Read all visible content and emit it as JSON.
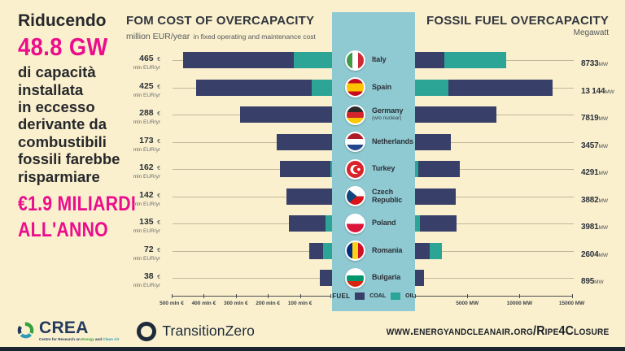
{
  "page": {
    "background": "#FAF0CE",
    "accent_pink": "#EB0D8C",
    "coal_color": "#383F69",
    "oil_color": "#2CA496",
    "column_color": "#8FC9D1",
    "footer_bar_color": "#1B2530"
  },
  "intro": {
    "lead": "Riducendo",
    "highlight_gw": "48.8 GW",
    "body": "di capacità\ninstallata\nin eccesso\nderivante da\ncombustibili\nfossili farebbe\nrisparmiare",
    "highlight_save": "€1.9 MILIARDI\nALL'ANNO"
  },
  "left_chart": {
    "title": "FOM COST OF OVERCAPACITY",
    "subtitle_unit": "million EUR/year",
    "subtitle_rest": "in fixed operating and maintenance cost",
    "currency_suffix": "€",
    "unit_label": "mln EUR/yr",
    "axis_ticks": [
      {
        "value": 500,
        "label": "500 mln €"
      },
      {
        "value": 400,
        "label": "400 mln €"
      },
      {
        "value": 300,
        "label": "300 mln €"
      },
      {
        "value": 200,
        "label": "200 mln €"
      },
      {
        "value": 100,
        "label": "100 mln €"
      }
    ]
  },
  "right_chart": {
    "title": "FOSSIL FUEL OVERCAPACITY",
    "subtitle": "Megawatt",
    "mw_suffix": "MW",
    "axis_ticks": [
      {
        "value": 5000,
        "label": "5000 MW"
      },
      {
        "value": 10000,
        "label": "10000 MW"
      },
      {
        "value": 15000,
        "label": "15000 MW"
      }
    ]
  },
  "legend": {
    "title": "FUEL",
    "items": [
      {
        "fuel": "coal",
        "label": "COAL"
      },
      {
        "fuel": "oil",
        "label": "OIL"
      }
    ]
  },
  "countries": [
    {
      "id": "italy",
      "name": "Italy",
      "sub": "",
      "fom_label": "465",
      "fom_segments": [
        {
          "fuel": "coal",
          "value": 346
        },
        {
          "fuel": "oil",
          "value": 119
        }
      ],
      "mw_label": "8733",
      "mw_segments": [
        {
          "fuel": "coal",
          "value": 2800
        },
        {
          "fuel": "oil",
          "value": 5933
        }
      ]
    },
    {
      "id": "spain",
      "name": "Spain",
      "sub": "",
      "fom_label": "425",
      "fom_segments": [
        {
          "fuel": "coal",
          "value": 362
        },
        {
          "fuel": "oil",
          "value": 63
        }
      ],
      "mw_label": "13 144",
      "mw_segments": [
        {
          "fuel": "oil",
          "value": 3200
        },
        {
          "fuel": "coal",
          "value": 9944
        }
      ]
    },
    {
      "id": "germany",
      "name": "Germany",
      "sub": "(w/o nuclear)",
      "fom_label": "288",
      "fom_segments": [
        {
          "fuel": "coal",
          "value": 288
        }
      ],
      "mw_label": "7819",
      "mw_segments": [
        {
          "fuel": "coal",
          "value": 7819
        }
      ]
    },
    {
      "id": "netherlands",
      "name": "Netherlands",
      "sub": "",
      "fom_label": "173",
      "fom_segments": [
        {
          "fuel": "coal",
          "value": 173
        }
      ],
      "mw_label": "3457",
      "mw_segments": [
        {
          "fuel": "coal",
          "value": 3457
        }
      ]
    },
    {
      "id": "turkey",
      "name": "Turkey",
      "sub": "",
      "fom_label": "162",
      "fom_segments": [
        {
          "fuel": "coal",
          "value": 157
        },
        {
          "fuel": "oil",
          "value": 5
        }
      ],
      "mw_label": "4291",
      "mw_segments": [
        {
          "fuel": "oil",
          "value": 300
        },
        {
          "fuel": "coal",
          "value": 3991
        }
      ]
    },
    {
      "id": "czech-republic",
      "name": "Czech Republic",
      "sub": "",
      "fom_label": "142",
      "fom_segments": [
        {
          "fuel": "coal",
          "value": 142
        }
      ],
      "mw_label": "3882",
      "mw_segments": [
        {
          "fuel": "coal",
          "value": 3882
        }
      ]
    },
    {
      "id": "poland",
      "name": "Poland",
      "sub": "",
      "fom_label": "135",
      "fom_segments": [
        {
          "fuel": "coal",
          "value": 115
        },
        {
          "fuel": "oil",
          "value": 20
        }
      ],
      "mw_label": "3981",
      "mw_segments": [
        {
          "fuel": "oil",
          "value": 500
        },
        {
          "fuel": "coal",
          "value": 3481
        }
      ]
    },
    {
      "id": "romania",
      "name": "Romania",
      "sub": "",
      "fom_label": "72",
      "fom_segments": [
        {
          "fuel": "coal",
          "value": 44
        },
        {
          "fuel": "oil",
          "value": 28
        }
      ],
      "mw_label": "2604",
      "mw_segments": [
        {
          "fuel": "coal",
          "value": 1430
        },
        {
          "fuel": "oil",
          "value": 1174
        }
      ]
    },
    {
      "id": "bulgaria",
      "name": "Bulgaria",
      "sub": "",
      "fom_label": "38",
      "fom_segments": [
        {
          "fuel": "coal",
          "value": 38
        }
      ],
      "mw_label": "895",
      "mw_segments": [
        {
          "fuel": "coal",
          "value": 895
        }
      ]
    }
  ],
  "footer": {
    "crea_name": "CREA",
    "crea_tagline_parts": [
      {
        "text": "Centre for Research on ",
        "color": "#24395E"
      },
      {
        "text": "Energy",
        "color": "#35A13C"
      },
      {
        "text": " and ",
        "color": "#24395E"
      },
      {
        "text": "Clean Air",
        "color": "#2E9BB5"
      }
    ],
    "partner_name": "TransitionZero",
    "url": "www.energyandcleanair.org/Ripe4Closure"
  },
  "chart_data": {
    "type": "bar",
    "orientation": "diverging-horizontal",
    "title_left": "FOM COST OF OVERCAPACITY (million EUR/year in fixed operating and maintenance cost)",
    "title_right": "FOSSIL FUEL OVERCAPACITY (Megawatt)",
    "categories": [
      "Italy",
      "Spain",
      "Germany (w/o nuclear)",
      "Netherlands",
      "Turkey",
      "Czech Republic",
      "Poland",
      "Romania",
      "Bulgaria"
    ],
    "legend": [
      "COAL",
      "OIL"
    ],
    "fom_cost_mln_eur_yr": {
      "axis_range": [
        0,
        500
      ],
      "totals": [
        465,
        425,
        288,
        173,
        162,
        142,
        135,
        72,
        38
      ],
      "series": [
        {
          "name": "COAL",
          "values": [
            346,
            362,
            288,
            173,
            157,
            142,
            115,
            44,
            38
          ]
        },
        {
          "name": "OIL",
          "values": [
            119,
            63,
            0,
            0,
            5,
            0,
            20,
            28,
            0
          ]
        }
      ]
    },
    "overcapacity_mw": {
      "axis_range": [
        0,
        15000
      ],
      "totals": [
        8733,
        13144,
        7819,
        3457,
        4291,
        3882,
        3981,
        2604,
        895
      ],
      "series": [
        {
          "name": "COAL",
          "values": [
            2800,
            9944,
            7819,
            3457,
            3991,
            3882,
            3481,
            1430,
            895
          ]
        },
        {
          "name": "OIL",
          "values": [
            5933,
            3200,
            0,
            0,
            300,
            0,
            500,
            1174,
            0
          ]
        }
      ]
    }
  }
}
